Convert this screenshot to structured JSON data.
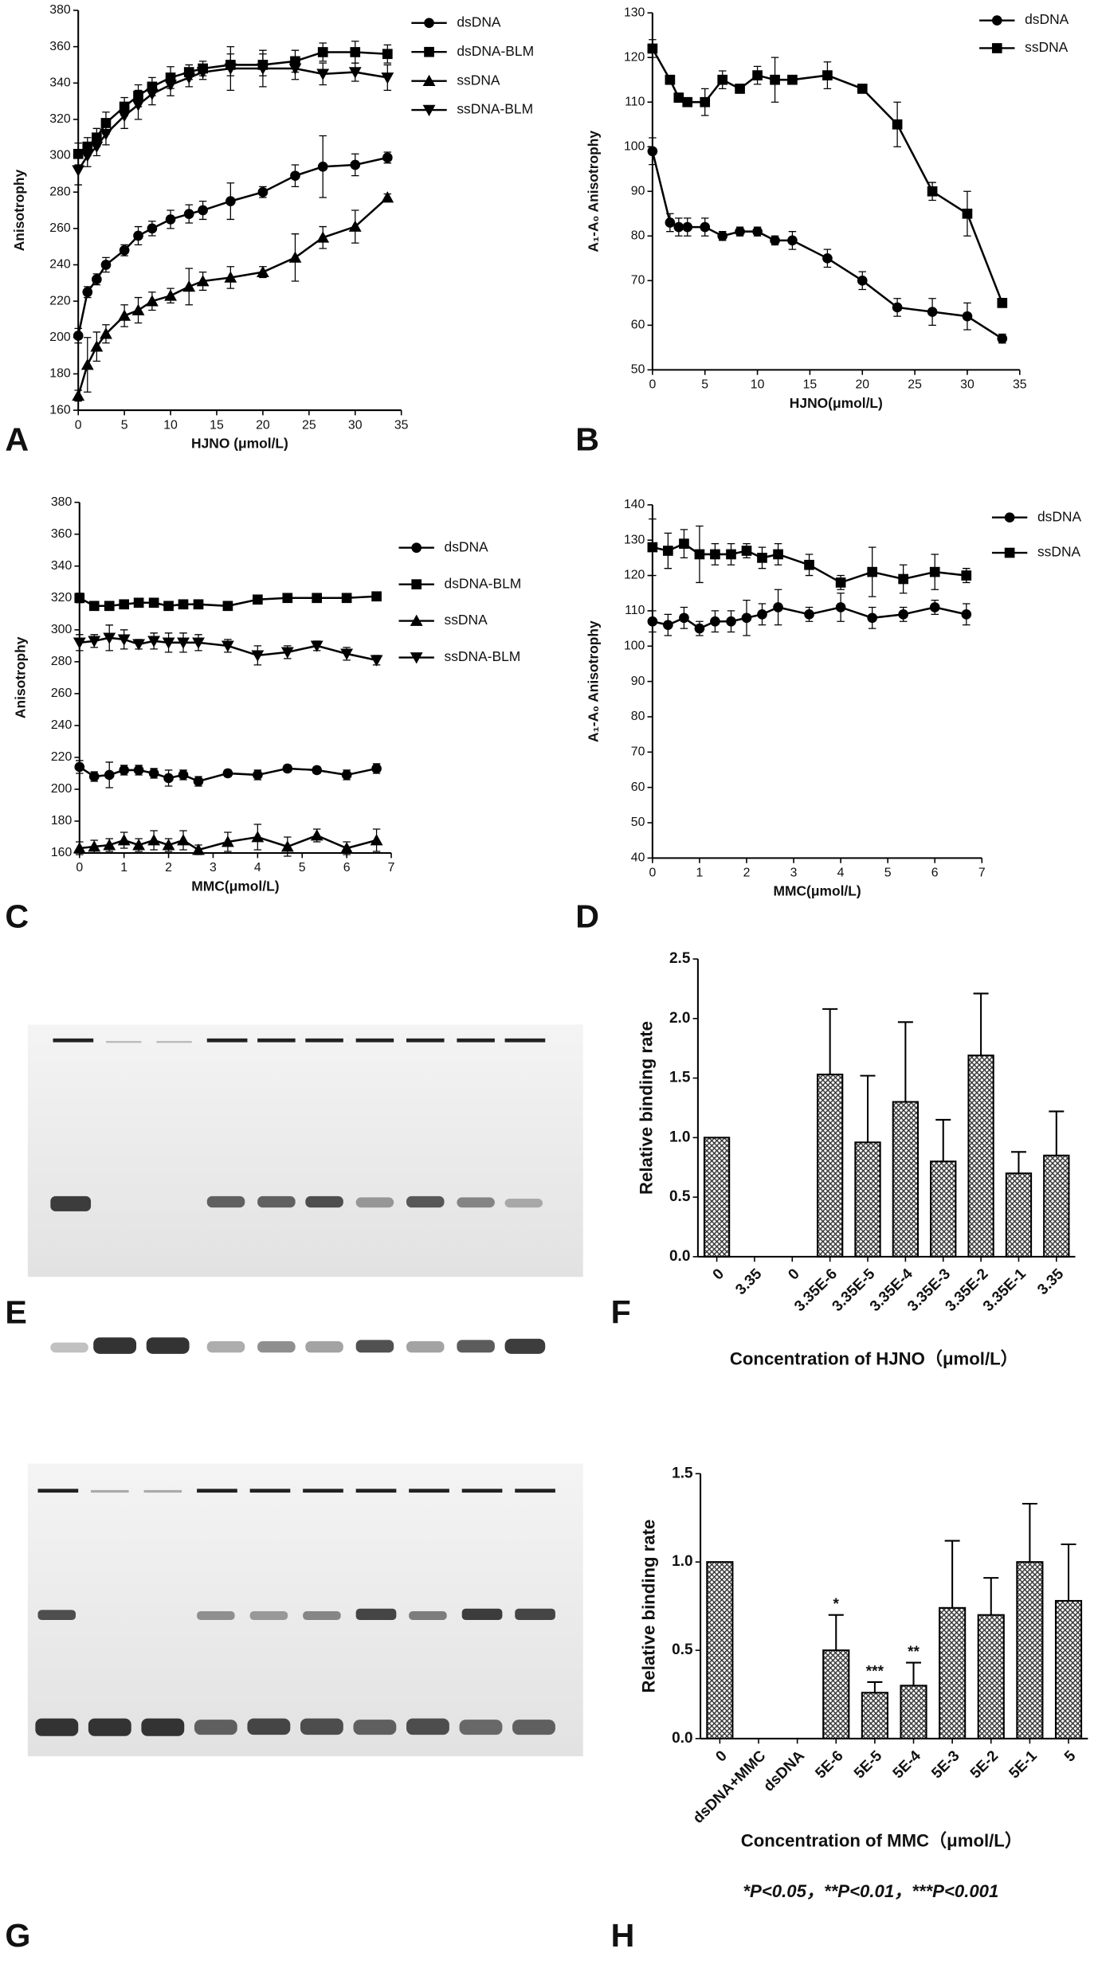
{
  "chart_data": [
    {
      "type": "line",
      "label": "A",
      "x_label": "HJNO (μmol/L)",
      "y_label": "Anisotrophy",
      "color": "#000000",
      "x": [
        0,
        1,
        2,
        3,
        5,
        6.5,
        8,
        10,
        12,
        13.5,
        16.5,
        20,
        23.5,
        26.5,
        30,
        33.5
      ],
      "series": [
        {
          "name": "dsDNA",
          "marker": "circle",
          "values": [
            201,
            225,
            232,
            240,
            248,
            256,
            260,
            265,
            268,
            270,
            275,
            280,
            289,
            294,
            295,
            299
          ],
          "errors": [
            4,
            3,
            3,
            4,
            3,
            5,
            4,
            5,
            5,
            5,
            10,
            3,
            6,
            17,
            6,
            3
          ]
        },
        {
          "name": "dsDNA-BLM",
          "marker": "square",
          "values": [
            301,
            305,
            310,
            318,
            327,
            333,
            338,
            343,
            346,
            348,
            350,
            350,
            352,
            357,
            357,
            356
          ],
          "errors": [
            6,
            5,
            5,
            6,
            5,
            6,
            5,
            6,
            4,
            4,
            6,
            6,
            6,
            5,
            6,
            5
          ]
        },
        {
          "name": "ssDNA",
          "marker": "triangle-up",
          "values": [
            168,
            185,
            195,
            202,
            212,
            215,
            220,
            223,
            228,
            231,
            233,
            236,
            244,
            255,
            261,
            277
          ],
          "errors": [
            3,
            15,
            8,
            5,
            6,
            7,
            5,
            4,
            10,
            5,
            6,
            3,
            13,
            6,
            9,
            2
          ]
        },
        {
          "name": "ssDNA-BLM",
          "marker": "triangle-down",
          "values": [
            292,
            300,
            305,
            312,
            322,
            328,
            334,
            339,
            343,
            346,
            348,
            348,
            348,
            345,
            346,
            343
          ],
          "errors": [
            8,
            6,
            5,
            6,
            7,
            8,
            6,
            6,
            5,
            4,
            12,
            10,
            6,
            6,
            5,
            7
          ]
        }
      ],
      "xlim": [
        0,
        35
      ],
      "xticks": [
        0,
        5,
        10,
        15,
        20,
        25,
        30,
        35
      ],
      "ylim": [
        160,
        380
      ],
      "yticks": [
        160,
        180,
        200,
        220,
        240,
        260,
        280,
        300,
        320,
        340,
        360,
        380
      ]
    },
    {
      "type": "line",
      "label": "B",
      "x_label": "HJNO(μmol/L)",
      "y_label": "A₁-A₀ Anisotrophy",
      "color": "#000000",
      "x": [
        0,
        1.67,
        2.5,
        3.33,
        5,
        6.67,
        8.33,
        10,
        11.67,
        13.33,
        16.67,
        20,
        23.33,
        26.67,
        30,
        33.33
      ],
      "series": [
        {
          "name": "dsDNA",
          "marker": "circle",
          "values": [
            99,
            83,
            82,
            82,
            82,
            80,
            81,
            81,
            79,
            79,
            75,
            70,
            64,
            63,
            62,
            57
          ],
          "errors": [
            3,
            2,
            2,
            2,
            2,
            1,
            1,
            1,
            1,
            2,
            2,
            2,
            2,
            3,
            3,
            1
          ]
        },
        {
          "name": "ssDNA",
          "marker": "square",
          "values": [
            122,
            115,
            111,
            110,
            110,
            115,
            113,
            116,
            115,
            115,
            116,
            113,
            105,
            90,
            85,
            65
          ],
          "errors": [
            2,
            1,
            1,
            1,
            3,
            2,
            1,
            2,
            5,
            1,
            3,
            1,
            5,
            2,
            5,
            1
          ]
        }
      ],
      "xlim": [
        0,
        35
      ],
      "xticks": [
        0,
        5,
        10,
        15,
        20,
        25,
        30,
        35
      ],
      "ylim": [
        50,
        130
      ],
      "yticks": [
        50,
        60,
        70,
        80,
        90,
        100,
        110,
        120,
        130
      ]
    },
    {
      "type": "line",
      "label": "C",
      "x_label": "MMC(μmol/L)",
      "y_label": "Anisotrophy",
      "color": "#000000",
      "x": [
        0,
        0.33,
        0.67,
        1,
        1.33,
        1.67,
        2,
        2.33,
        2.67,
        3.33,
        4,
        4.67,
        5.33,
        6,
        6.67
      ],
      "series": [
        {
          "name": "dsDNA",
          "marker": "circle",
          "values": [
            214,
            208,
            209,
            212,
            212,
            210,
            207,
            209,
            205,
            210,
            209,
            213,
            212,
            209,
            213
          ],
          "errors": [
            4,
            3,
            8,
            3,
            3,
            3,
            5,
            3,
            3,
            2,
            3,
            2,
            2,
            3,
            3
          ]
        },
        {
          "name": "dsDNA-BLM",
          "marker": "square",
          "values": [
            320,
            315,
            315,
            316,
            317,
            317,
            315,
            316,
            316,
            315,
            319,
            320,
            320,
            320,
            321
          ],
          "errors": [
            3,
            2,
            2,
            2,
            2,
            2,
            2,
            2,
            2,
            2,
            2,
            2,
            2,
            2,
            2
          ]
        },
        {
          "name": "ssDNA",
          "marker": "triangle-up",
          "values": [
            163,
            164,
            165,
            168,
            165,
            168,
            165,
            168,
            162,
            167,
            170,
            164,
            171,
            163,
            168
          ],
          "errors": [
            4,
            4,
            4,
            5,
            4,
            6,
            4,
            6,
            3,
            6,
            8,
            6,
            4,
            4,
            7
          ]
        },
        {
          "name": "ssDNA-BLM",
          "marker": "triangle-down",
          "values": [
            292,
            293,
            295,
            294,
            291,
            293,
            292,
            292,
            292,
            290,
            284,
            286,
            290,
            285,
            281
          ],
          "errors": [
            5,
            4,
            8,
            6,
            3,
            5,
            6,
            6,
            5,
            4,
            6,
            4,
            3,
            4,
            3
          ]
        }
      ],
      "xlim": [
        0,
        7
      ],
      "xticks": [
        0,
        1,
        2,
        3,
        4,
        5,
        6,
        7
      ],
      "ylim": [
        160,
        380
      ],
      "yticks": [
        160,
        180,
        200,
        220,
        240,
        260,
        280,
        300,
        320,
        340,
        360,
        380
      ]
    },
    {
      "type": "line",
      "label": "D",
      "x_label": "MMC(μmol/L)",
      "y_label": "A₁-A₀ Anisotrophy",
      "color": "#000000",
      "x": [
        0,
        0.33,
        0.67,
        1,
        1.33,
        1.67,
        2,
        2.33,
        2.67,
        3.33,
        4,
        4.67,
        5.33,
        6,
        6.67
      ],
      "series": [
        {
          "name": "dsDNA",
          "marker": "circle",
          "values": [
            107,
            106,
            108,
            105,
            107,
            107,
            108,
            109,
            111,
            109,
            111,
            108,
            109,
            111,
            109
          ],
          "errors": [
            3,
            3,
            3,
            2,
            3,
            3,
            5,
            3,
            5,
            2,
            4,
            3,
            2,
            2,
            3
          ]
        },
        {
          "name": "ssDNA",
          "marker": "square",
          "values": [
            128,
            127,
            129,
            126,
            126,
            126,
            127,
            125,
            126,
            123,
            118,
            121,
            119,
            121,
            120
          ],
          "errors": [
            8,
            5,
            4,
            8,
            3,
            3,
            2,
            3,
            3,
            3,
            2,
            7,
            4,
            5,
            2
          ]
        }
      ],
      "xlim": [
        0,
        7
      ],
      "xticks": [
        0,
        1,
        2,
        3,
        4,
        5,
        6,
        7
      ],
      "ylim": [
        40,
        140
      ],
      "yticks": [
        40,
        50,
        60,
        70,
        80,
        90,
        100,
        110,
        120,
        130,
        140
      ]
    },
    {
      "type": "bar",
      "label": "F",
      "x_label": "Concentration of HJNO（μmol/L）",
      "y_label": "Relative binding rate",
      "color": "#000000",
      "categories": [
        "0",
        "3.35",
        "0",
        "3.35E-6",
        "3.35E-5",
        "3.35E-4",
        "3.35E-3",
        "3.35E-2",
        "3.35E-1",
        "3.35"
      ],
      "values": [
        1.0,
        0,
        0,
        1.53,
        0.96,
        1.3,
        0.8,
        1.69,
        0.7,
        0.85
      ],
      "errors": [
        null,
        null,
        null,
        0.55,
        0.56,
        0.67,
        0.35,
        0.52,
        0.18,
        0.37
      ],
      "ylim": [
        0,
        2.5
      ],
      "yticks": [
        {
          "value": 0,
          "label": "0.0"
        },
        {
          "value": 0.5,
          "label": "0.5"
        },
        {
          "value": 1,
          "label": "1.0"
        },
        {
          "value": 1.5,
          "label": "1.5"
        },
        {
          "value": 2,
          "label": "2.0"
        },
        {
          "value": 2.5,
          "label": "2.5"
        }
      ]
    },
    {
      "type": "bar",
      "label": "H",
      "x_label": "Concentration of MMC（μmol/L）",
      "y_label": "Relative binding rate",
      "color": "#000000",
      "categories": [
        "0",
        "dsDNA+MMC",
        "dsDNA",
        "5E-6",
        "5E-5",
        "5E-4",
        "5E-3",
        "5E-2",
        "5E-1",
        "5"
      ],
      "values": [
        1.0,
        0,
        0,
        0.5,
        0.26,
        0.3,
        0.74,
        0.7,
        1.0,
        0.78
      ],
      "errors": [
        null,
        null,
        null,
        0.2,
        0.06,
        0.13,
        0.38,
        0.21,
        0.33,
        0.32
      ],
      "significance": [
        null,
        null,
        null,
        "*",
        "***",
        "**",
        null,
        null,
        null,
        null
      ],
      "footnote": "*P<0.05，**P<0.01，***P<0.001",
      "ylim": [
        0,
        1.5
      ],
      "yticks": [
        {
          "value": 0,
          "label": "0.0"
        },
        {
          "value": 0.5,
          "label": "0.5"
        },
        {
          "value": 1,
          "label": "1.0"
        },
        {
          "value": 1.5,
          "label": "1.5"
        }
      ]
    }
  ],
  "gels": [
    {
      "label": "E"
    },
    {
      "label": "G"
    }
  ]
}
